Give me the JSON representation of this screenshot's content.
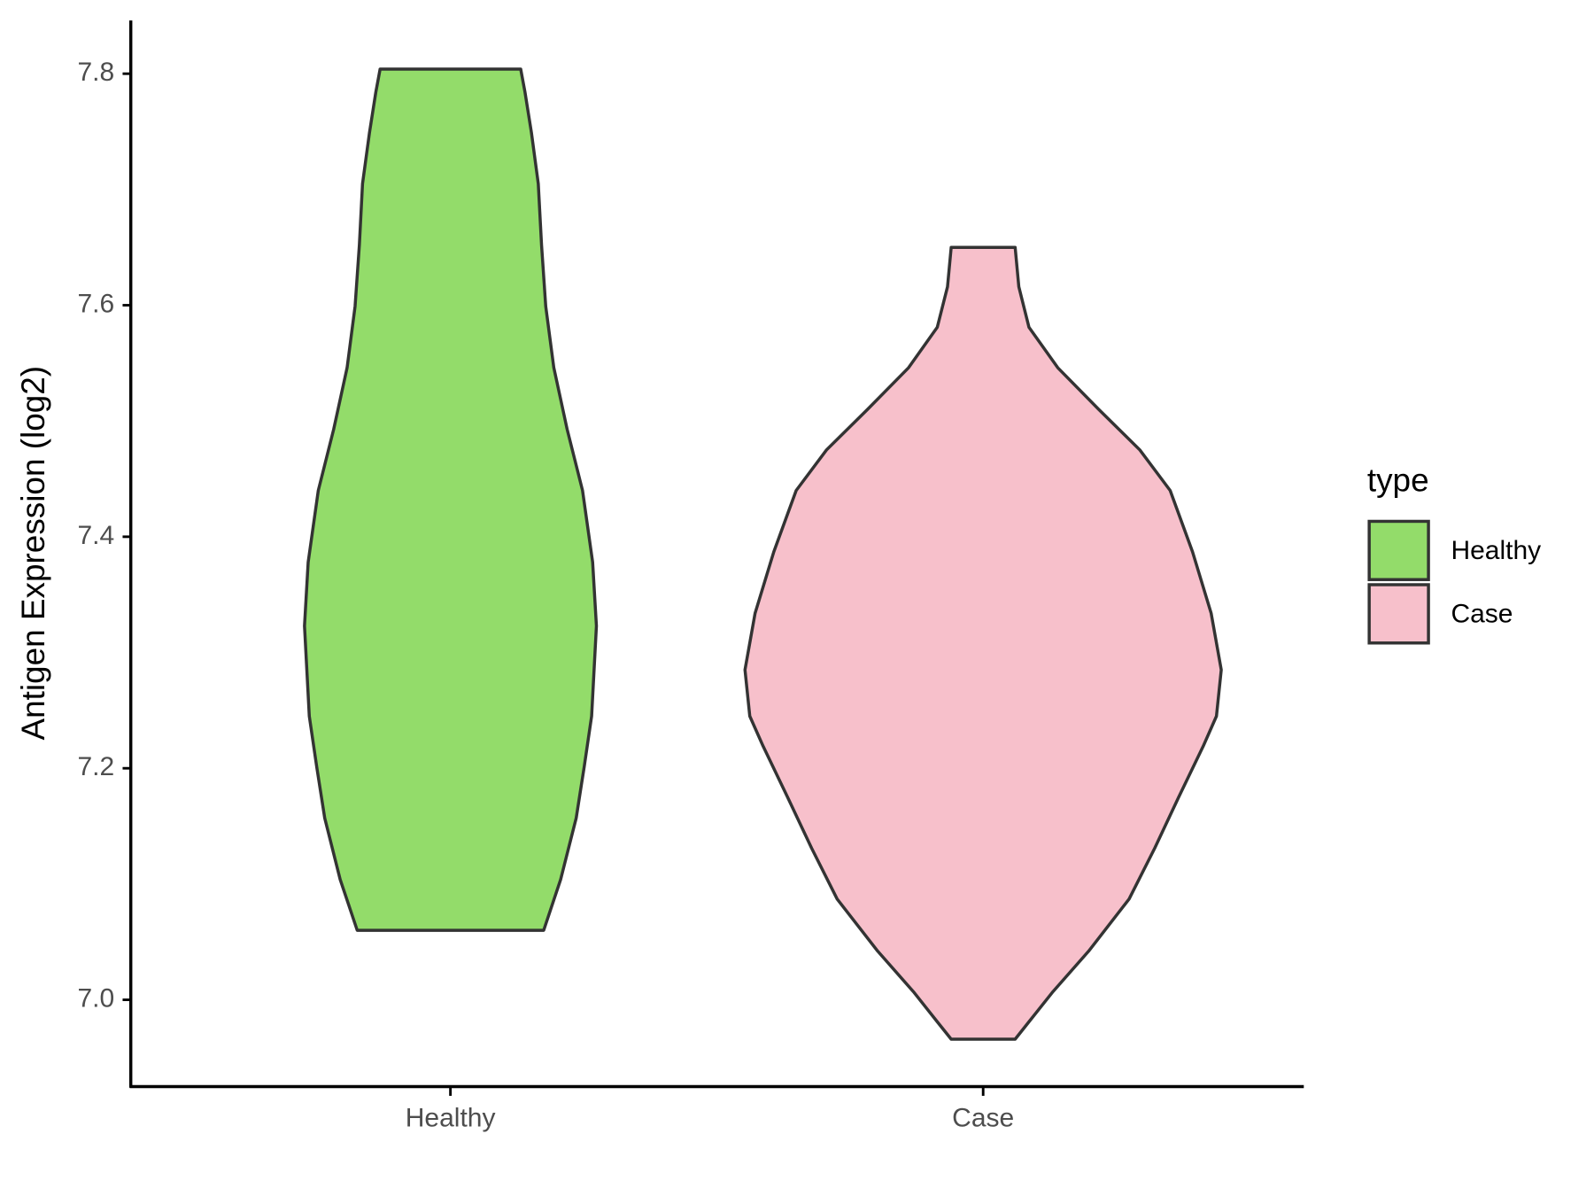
{
  "chart_data": {
    "type": "violin",
    "y_label": "Antigen Expression (log2)",
    "categories": [
      "Healthy",
      "Case"
    ],
    "series": [
      {
        "name": "Healthy",
        "color": "#93dc6a",
        "y": [
          7.06,
          7.104,
          7.157,
          7.201,
          7.245,
          7.323,
          7.378,
          7.44,
          7.493,
          7.546,
          7.599,
          7.652,
          7.705,
          7.749,
          7.784,
          7.804
        ],
        "halfwidth": [
          0.175,
          0.207,
          0.236,
          0.251,
          0.265,
          0.274,
          0.267,
          0.248,
          0.219,
          0.194,
          0.179,
          0.171,
          0.165,
          0.152,
          0.14,
          0.132
        ]
      },
      {
        "name": "Case",
        "color": "#f7c0cb",
        "y": [
          6.966,
          6.981,
          7.007,
          7.042,
          7.087,
          7.131,
          7.175,
          7.219,
          7.245,
          7.285,
          7.334,
          7.387,
          7.44,
          7.475,
          7.51,
          7.546,
          7.581,
          7.616,
          7.65
        ],
        "halfwidth": [
          0.06,
          0.086,
          0.131,
          0.198,
          0.274,
          0.322,
          0.367,
          0.413,
          0.438,
          0.447,
          0.428,
          0.393,
          0.351,
          0.294,
          0.217,
          0.14,
          0.086,
          0.067,
          0.06
        ]
      }
    ],
    "ylim": [
      6.925,
      7.846
    ],
    "yticks": [
      {
        "value": 7.0,
        "label": "7.0"
      },
      {
        "value": 7.2,
        "label": "7.2"
      },
      {
        "value": 7.4,
        "label": "7.4"
      },
      {
        "value": 7.6,
        "label": "7.6"
      },
      {
        "value": 7.8,
        "label": "7.8"
      }
    ],
    "legend_title": "type",
    "legend": "right"
  }
}
